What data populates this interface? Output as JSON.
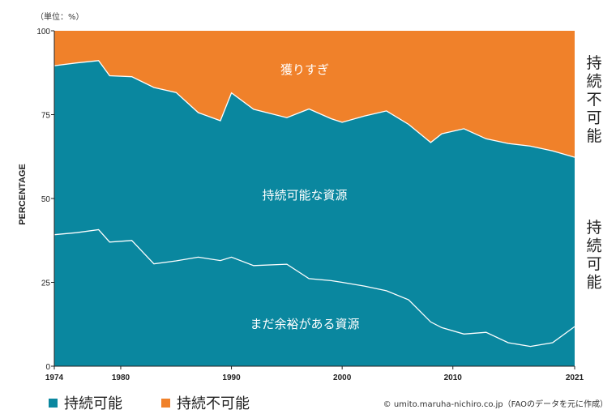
{
  "chart_data": {
    "type": "area",
    "unit_label": "（単位：%）",
    "ylabel": "PERCENTAGE",
    "xlabel": "",
    "ylim": [
      0,
      100
    ],
    "yticks": [
      0,
      25,
      50,
      75,
      100
    ],
    "xlim": [
      1974,
      2021
    ],
    "xticks": [
      1974,
      1980,
      1990,
      2000,
      2010,
      2021
    ],
    "x": [
      1974,
      1976,
      1978,
      1979,
      1981,
      1983,
      1985,
      1987,
      1989,
      1990,
      1992,
      1995,
      1997,
      1999,
      2000,
      2002,
      2004,
      2006,
      2008,
      2009,
      2011,
      2013,
      2015,
      2017,
      2019,
      2021
    ],
    "sustainable_total": [
      89.6,
      90.4,
      91.1,
      86.6,
      86.3,
      83.1,
      81.6,
      75.6,
      73.2,
      81.5,
      76.6,
      74.1,
      76.7,
      73.8,
      72.7,
      74.6,
      76.1,
      72.1,
      66.7,
      69.3,
      70.8,
      67.8,
      66.4,
      65.6,
      64.2,
      62.3
    ],
    "underfished": [
      39.2,
      39.8,
      40.7,
      37.0,
      37.5,
      30.5,
      31.4,
      32.5,
      31.5,
      32.5,
      30.0,
      30.4,
      26.1,
      25.5,
      25.0,
      23.9,
      22.5,
      19.8,
      13.2,
      11.5,
      9.6,
      10.1,
      7.0,
      5.9,
      7.0,
      11.8
    ],
    "series": [
      {
        "name": "持続可能",
        "color": "#0a879f"
      },
      {
        "name": "持続不可能",
        "color": "#f0812a"
      }
    ],
    "annotations": {
      "overfished": "獲りすぎ",
      "sustainable": "持続可能な資源",
      "underfished": "まだ余裕がある資源"
    },
    "side_labels": {
      "unsustainable": "持続不可能",
      "sustainable": "持続可能"
    }
  },
  "legend": [
    {
      "label": "持続可能",
      "color": "#0a879f"
    },
    {
      "label": "持続不可能",
      "color": "#f0812a"
    }
  ],
  "credit": "© umito.maruha-nichiro.co.jp（FAOのデータを元に作成）"
}
